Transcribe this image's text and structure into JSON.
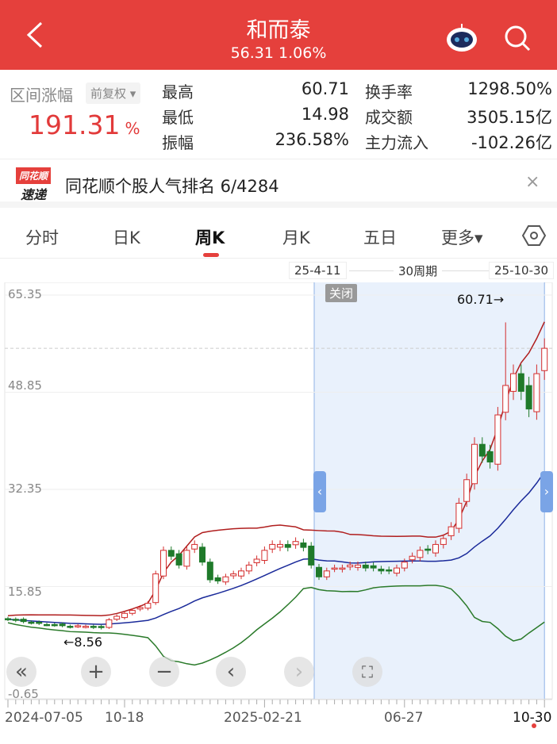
{
  "header": {
    "title": "和而泰",
    "price": "56.31",
    "change": "1.06%",
    "back_icon": "chevron-left-icon",
    "robot_icon": "robot-icon",
    "search_icon": "search-icon",
    "color": "#e5403c"
  },
  "stats": {
    "range_label": "区间涨幅",
    "adjust": "前复权",
    "range_change": "191.31",
    "range_unit": "%",
    "items": [
      {
        "k": "最高",
        "v": "60.71"
      },
      {
        "k": "最低",
        "v": "14.98"
      },
      {
        "k": "振幅",
        "v": "236.58%"
      },
      {
        "k": "换手率",
        "v": "1298.50%"
      },
      {
        "k": "成交额",
        "v": "3505.15亿"
      },
      {
        "k": "主力流入",
        "v": "-102.26亿"
      }
    ]
  },
  "banner": {
    "logo_top": "同花顺",
    "logo_bottom": "速递",
    "text": "同花顺个股人气排名 6/4284",
    "close": "×"
  },
  "tabs": [
    {
      "label": "分时"
    },
    {
      "label": "日K"
    },
    {
      "label": "周K",
      "active": true
    },
    {
      "label": "月K"
    },
    {
      "label": "五日"
    },
    {
      "label": "更多▾"
    }
  ],
  "selection": {
    "start": "25-4-11",
    "period": "30周期",
    "end": "25-10-30",
    "close_button": "关闭"
  },
  "controls": {
    "rewind": "«",
    "zoom_in": "+",
    "zoom_out": "−",
    "prev": "‹",
    "next": "›",
    "fullscreen": "⛶"
  },
  "chart_data": {
    "type": "candlestick",
    "interval": "weekly",
    "y_ticks": [
      "65.35",
      "48.85",
      "32.35",
      "15.85",
      "-0.65"
    ],
    "ylim": [
      -0.65,
      65.35
    ],
    "x_ticks": [
      {
        "label": "2024-07-05",
        "week": 0
      },
      {
        "label": "10-18",
        "week": 15
      },
      {
        "label": "2025-02-21",
        "week": 33
      },
      {
        "label": "06-27",
        "week": 51
      },
      {
        "label": "10-30",
        "week": 69
      }
    ],
    "max_annotation": "60.71→",
    "min_annotation": "←8.56",
    "max": {
      "week": 64,
      "value": 60.71
    },
    "min": {
      "week": 12,
      "value": 8.56
    },
    "selection_weeks": [
      40,
      69
    ],
    "close": [
      10.3,
      10.1,
      9.9,
      9.7,
      9.6,
      9.4,
      9.3,
      9.2,
      9.0,
      9.2,
      9.1,
      8.9,
      9.0,
      10.2,
      10.8,
      11.3,
      11.8,
      12.3,
      13,
      18,
      22,
      21,
      19.5,
      22,
      23,
      20,
      17,
      16.8,
      17.5,
      18,
      18.5,
      19.5,
      20.5,
      22,
      23,
      23,
      22.5,
      23.5,
      22.5,
      19.5,
      17.5,
      18.5,
      19,
      19,
      19.5,
      19.5,
      19,
      19,
      18.5,
      18.5,
      19,
      20,
      21,
      22,
      22,
      23,
      24,
      26,
      30,
      34,
      40,
      38,
      37,
      45,
      50,
      52,
      49,
      46,
      52,
      56.31
    ],
    "colors": {
      "up": "#d42c2c",
      "down": "#1f7a2a",
      "upper_band": "#b01e1e",
      "mid_band": "#1a2a9a",
      "lower_band": "#2a7a2a",
      "selection": "#e9f1fc"
    }
  }
}
